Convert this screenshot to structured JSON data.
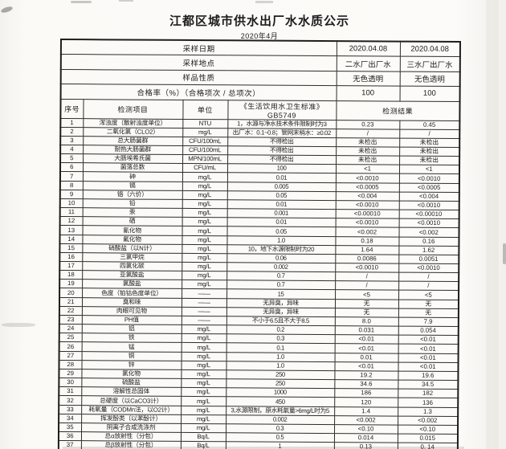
{
  "page": {
    "title": "江都区城市供水出厂水水质公示",
    "subtitle": "2020年4月"
  },
  "colors": {
    "paper": "#fbfaf7",
    "ink": "#1c1c1c"
  },
  "info_rows": [
    {
      "label": "采样日期",
      "plant2": "2020.04.08",
      "plant3": "2020.04.08"
    },
    {
      "label": "采样地点",
      "plant2": "二水厂出厂水",
      "plant3": "三水厂出厂水"
    },
    {
      "label": "样品性质",
      "plant2": "无色透明",
      "plant3": "无色透明"
    },
    {
      "label": "合格率（%）（合格项次 / 总项次）",
      "plant2": "100",
      "plant3": "100"
    }
  ],
  "columns": {
    "index": "序号",
    "item": "检测项目",
    "unit": "单位",
    "standard": "《生活饮用水卫生标准》 GB5749",
    "result": "检测结果"
  },
  "rows": [
    [
      "1",
      "浑浊度（散射浊度单位）",
      "NTU",
      "1，水源与净水技术条件限制时为3",
      "0.23",
      "0.45"
    ],
    [
      "2",
      "二氧化氯（CLO2）",
      "mg/L",
      "出厂水：0.1~0.8；管网末梢水：≥0.02",
      "/",
      "/"
    ],
    [
      "3",
      "总大肠菌群",
      "CFU/100mL",
      "不得检出",
      "未检出",
      "未检出"
    ],
    [
      "4",
      "耐热大肠菌群",
      "CFU/100mL",
      "不得检出",
      "未检出",
      "未检出"
    ],
    [
      "5",
      "大肠埃希氏菌",
      "MPN/100mL",
      "不得检出",
      "未检出",
      "未检出"
    ],
    [
      "6",
      "菌落总数",
      "CFU/mL",
      "100",
      "<1",
      "<1"
    ],
    [
      "7",
      "砷",
      "mg/L",
      "0.01",
      "<0.0010",
      "<0.0010"
    ],
    [
      "8",
      "镉",
      "mg/L",
      "0.005",
      "<0.0005",
      "<0.0005"
    ],
    [
      "9",
      "铬（六价）",
      "mg/L",
      "0.05",
      "<0.004",
      "<0.004"
    ],
    [
      "10",
      "铅",
      "mg/L",
      "0.01",
      "<0.0010",
      "<0.0010"
    ],
    [
      "11",
      "汞",
      "mg/L",
      "0.001",
      "<0.00010",
      "<0.00010"
    ],
    [
      "12",
      "硒",
      "mg/L",
      "0.01",
      "<0.0010",
      "<0.0010"
    ],
    [
      "13",
      "氰化物",
      "mg/L",
      "0.05",
      "<0.002",
      "<0.002"
    ],
    [
      "14",
      "氟化物",
      "mg/L",
      "1.0",
      "0.18",
      "0.16"
    ],
    [
      "15",
      "硝酸盐（以N计）",
      "mg/L",
      "10，地下水源限制时为20",
      "1.64",
      "1.62"
    ],
    [
      "16",
      "三氯甲烷",
      "mg/L",
      "0.06",
      "0.0086",
      "0.0051"
    ],
    [
      "17",
      "四氯化碳",
      "mg/L",
      "0.002",
      "<0.0010",
      "<0.0010"
    ],
    [
      "18",
      "亚氯酸盐",
      "mg/L",
      "0.7",
      "/",
      "/"
    ],
    [
      "19",
      "氯酸盐",
      "mg/L",
      "0.7",
      "/",
      "/"
    ],
    [
      "20",
      "色度（铂钴色度单位）",
      "——",
      "15",
      "<5",
      "<5"
    ],
    [
      "21",
      "臭和味",
      "——",
      "无异臭，异味",
      "无",
      "无"
    ],
    [
      "22",
      "肉眼可见物",
      "——",
      "无异臭，异味",
      "无",
      "无"
    ],
    [
      "23",
      "PH值",
      "——",
      "不小于6.5且不大于8.5",
      "8.0",
      "7.9"
    ],
    [
      "24",
      "铝",
      "mg/L",
      "0.2",
      "0.031",
      "0.054"
    ],
    [
      "25",
      "铁",
      "mg/L",
      "0.3",
      "<0.01",
      "<0.01"
    ],
    [
      "26",
      "锰",
      "mg/L",
      "0.1",
      "<0.01",
      "<0.01"
    ],
    [
      "27",
      "铜",
      "mg/L",
      "1.0",
      "0.01",
      "<0.01"
    ],
    [
      "28",
      "锌",
      "mg/L",
      "1.0",
      "<0.01",
      "<0.01"
    ],
    [
      "29",
      "氯化物",
      "mg/L",
      "250",
      "19.2",
      "19.6"
    ],
    [
      "30",
      "硫酸盐",
      "mg/L",
      "250",
      "34.6",
      "34.5"
    ],
    [
      "31",
      "溶解性总固体",
      "mg/L",
      "1000",
      "186",
      "182"
    ],
    [
      "32",
      "总硬度（以CaCO3计）",
      "mg/L",
      "450",
      "120",
      "136"
    ],
    [
      "33",
      "耗氧量（CODMn法，以O2计）",
      "mg/L",
      "3,水源限制，原水耗氧量>6mg/L时为5",
      "1.4",
      "1.3"
    ],
    [
      "34",
      "挥发酚类（以苯酚计）",
      "mg/L",
      "0.002",
      "<0.002",
      "<0.002"
    ],
    [
      "35",
      "阴离子合成洗涤剂",
      "mg/L",
      "0.3",
      "<0.10",
      "<0.10"
    ],
    [
      "36",
      "总α放射性（分包）",
      "Bq/L",
      "0.5",
      "0.014",
      "0.015"
    ],
    [
      "37",
      "总β放射性（分包）",
      "Bq/L",
      "1",
      "0.13",
      "0. 14"
    ]
  ]
}
